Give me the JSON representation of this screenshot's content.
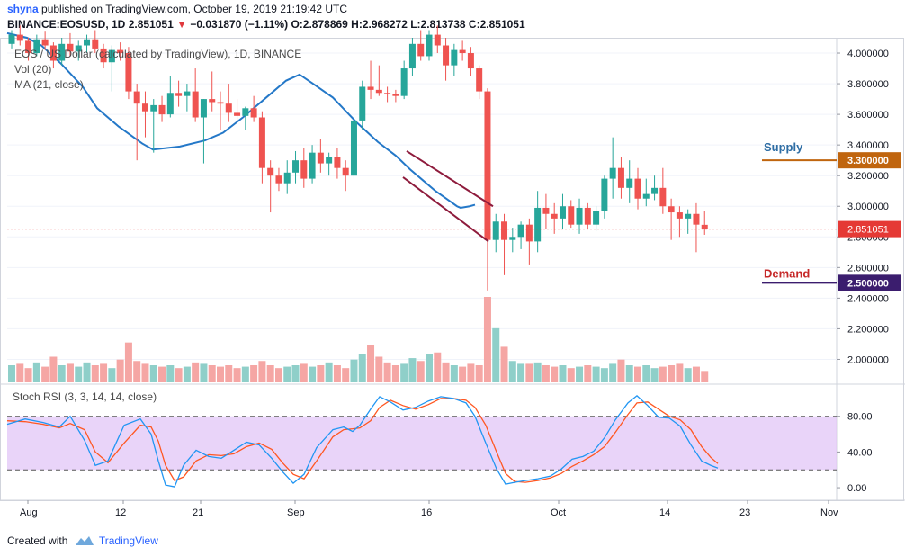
{
  "header": {
    "user": "shyna",
    "published": "published on TradingView.com, October 19, 2019 21:19:42 UTC",
    "symbol": "BINANCE:EOSUSD, 1D",
    "last": "2.851051",
    "change_arrow": "▼",
    "change": "−0.031870 (−1.11%)",
    "ohlc": "O:2.878869 H:2.968272 L:2.813738 C:2.851051"
  },
  "legend": {
    "title": "EOS / US Dollar (calculated by TradingView), 1D, BINANCE",
    "vol": "Vol (20)",
    "ma": "MA (21, close)",
    "stoch": "Stoch RSI (3, 3, 14, 14, close)"
  },
  "footer": {
    "created_with": "Created with",
    "brand": "TradingView"
  },
  "colors": {
    "up": "#26a69a",
    "down": "#ef5350",
    "ma": "#2478c8",
    "stoch_k": "#2196f3",
    "stoch_d": "#ff5722",
    "stoch_band": "#e1c6f7",
    "supply": "#c0650e",
    "demand": "#3b1d6e",
    "channel": "#8e1b3c",
    "price_line": "#e53935"
  },
  "chart_data": {
    "type": "candlestick",
    "x_labels": [
      "Aug",
      "12",
      "21",
      "Sep",
      "16",
      "Oct",
      "14",
      "23",
      "Nov"
    ],
    "price_axis": {
      "ylim": [
        1.85,
        4.1
      ],
      "ticks": [
        "4.000000",
        "3.800000",
        "3.600000",
        "3.400000",
        "3.200000",
        "3.000000",
        "2.800000",
        "2.600000",
        "2.400000",
        "2.200000",
        "2.000000"
      ],
      "tick_values": [
        4.0,
        3.8,
        3.6,
        3.4,
        3.2,
        3.0,
        2.8,
        2.6,
        2.4,
        2.2,
        2.0
      ]
    },
    "candles": [
      [
        4.06,
        4.15,
        4.03,
        4.12
      ],
      [
        4.12,
        4.18,
        4.05,
        4.08
      ],
      [
        4.08,
        4.1,
        3.95,
        4.0
      ],
      [
        4.0,
        4.12,
        3.98,
        4.09
      ],
      [
        4.09,
        4.14,
        4.02,
        4.05
      ],
      [
        4.05,
        4.07,
        3.9,
        3.95
      ],
      [
        3.95,
        4.1,
        3.92,
        4.06
      ],
      [
        4.06,
        4.13,
        3.98,
        4.01
      ],
      [
        4.01,
        4.08,
        3.95,
        4.05
      ],
      [
        4.05,
        4.12,
        4.0,
        4.09
      ],
      [
        4.09,
        4.15,
        4.0,
        4.03
      ],
      [
        4.03,
        4.06,
        3.9,
        3.94
      ],
      [
        3.94,
        4.05,
        3.75,
        4.02
      ],
      [
        4.02,
        4.07,
        3.95,
        4.0
      ],
      [
        4.0,
        4.04,
        3.7,
        3.75
      ],
      [
        3.75,
        3.8,
        3.3,
        3.67
      ],
      [
        3.67,
        3.75,
        3.45,
        3.62
      ],
      [
        3.62,
        3.7,
        3.35,
        3.66
      ],
      [
        3.66,
        3.72,
        3.55,
        3.6
      ],
      [
        3.6,
        3.85,
        3.58,
        3.74
      ],
      [
        3.74,
        3.82,
        3.65,
        3.72
      ],
      [
        3.72,
        3.8,
        3.62,
        3.75
      ],
      [
        3.75,
        3.9,
        3.55,
        3.58
      ],
      [
        3.58,
        3.7,
        3.28,
        3.7
      ],
      [
        3.7,
        3.88,
        3.62,
        3.68
      ],
      [
        3.68,
        3.75,
        3.5,
        3.67
      ],
      [
        3.67,
        3.8,
        3.55,
        3.61
      ],
      [
        3.61,
        3.7,
        3.55,
        3.59
      ],
      [
        3.59,
        3.65,
        3.5,
        3.64
      ],
      [
        3.64,
        3.72,
        3.55,
        3.58
      ],
      [
        3.58,
        3.62,
        3.15,
        3.25
      ],
      [
        3.25,
        3.3,
        2.96,
        3.2
      ],
      [
        3.2,
        3.25,
        3.1,
        3.15
      ],
      [
        3.15,
        3.3,
        3.08,
        3.22
      ],
      [
        3.22,
        3.36,
        3.15,
        3.3
      ],
      [
        3.3,
        3.38,
        3.12,
        3.18
      ],
      [
        3.18,
        3.4,
        3.15,
        3.35
      ],
      [
        3.35,
        3.44,
        3.22,
        3.28
      ],
      [
        3.28,
        3.35,
        3.2,
        3.32
      ],
      [
        3.32,
        3.38,
        3.18,
        3.25
      ],
      [
        3.25,
        3.3,
        3.1,
        3.2
      ],
      [
        3.2,
        3.58,
        3.18,
        3.56
      ],
      [
        3.56,
        3.82,
        3.5,
        3.78
      ],
      [
        3.78,
        3.95,
        3.7,
        3.76
      ],
      [
        3.76,
        3.92,
        3.72,
        3.74
      ],
      [
        3.74,
        3.78,
        3.68,
        3.73
      ],
      [
        3.73,
        3.76,
        3.68,
        3.72
      ],
      [
        3.72,
        3.95,
        3.7,
        3.9
      ],
      [
        3.9,
        4.1,
        3.85,
        4.06
      ],
      [
        4.06,
        4.15,
        3.95,
        3.98
      ],
      [
        3.98,
        4.15,
        3.95,
        4.12
      ],
      [
        4.12,
        4.18,
        4.0,
        4.05
      ],
      [
        4.05,
        4.1,
        3.82,
        3.92
      ],
      [
        3.92,
        4.06,
        3.85,
        4.02
      ],
      [
        4.02,
        4.08,
        3.95,
        4.0
      ],
      [
        4.0,
        4.04,
        3.85,
        3.9
      ],
      [
        3.9,
        3.92,
        3.7,
        3.75
      ],
      [
        3.75,
        3.77,
        2.45,
        2.78
      ],
      [
        2.78,
        2.95,
        2.7,
        2.9
      ],
      [
        2.9,
        2.95,
        2.55,
        2.78
      ],
      [
        2.78,
        2.86,
        2.7,
        2.8
      ],
      [
        2.8,
        2.9,
        2.72,
        2.88
      ],
      [
        2.88,
        2.92,
        2.62,
        2.77
      ],
      [
        2.77,
        3.1,
        2.7,
        2.99
      ],
      [
        2.99,
        3.08,
        2.85,
        2.95
      ],
      [
        2.95,
        3.02,
        2.82,
        2.92
      ],
      [
        2.92,
        3.08,
        2.85,
        3.0
      ],
      [
        3.0,
        3.04,
        2.86,
        2.88
      ],
      [
        2.88,
        3.05,
        2.82,
        2.99
      ],
      [
        2.99,
        3.02,
        2.85,
        2.88
      ],
      [
        2.88,
        3.0,
        2.84,
        2.97
      ],
      [
        2.97,
        3.2,
        2.92,
        3.18
      ],
      [
        3.18,
        3.45,
        3.05,
        3.25
      ],
      [
        3.25,
        3.32,
        3.05,
        3.12
      ],
      [
        3.12,
        3.3,
        3.02,
        3.18
      ],
      [
        3.18,
        3.25,
        2.98,
        3.05
      ],
      [
        3.05,
        3.18,
        3.0,
        3.08
      ],
      [
        3.08,
        3.2,
        3.04,
        3.12
      ],
      [
        3.12,
        3.25,
        2.95,
        3.0
      ],
      [
        3.0,
        3.05,
        2.78,
        2.96
      ],
      [
        2.96,
        3.0,
        2.8,
        2.92
      ],
      [
        2.92,
        2.98,
        2.82,
        2.95
      ],
      [
        2.95,
        3.02,
        2.7,
        2.88
      ],
      [
        2.878869,
        2.968272,
        2.813738,
        2.851051
      ]
    ],
    "volume": [
      12,
      13,
      10,
      14,
      11,
      18,
      12,
      13,
      11,
      14,
      12,
      13,
      10,
      16,
      28,
      15,
      13,
      12,
      11,
      12,
      10,
      11,
      14,
      13,
      12,
      11,
      12,
      10,
      11,
      12,
      15,
      12,
      10,
      11,
      12,
      13,
      11,
      12,
      14,
      12,
      10,
      16,
      20,
      26,
      18,
      14,
      12,
      13,
      17,
      15,
      20,
      21,
      14,
      12,
      11,
      13,
      12,
      60,
      38,
      25,
      15,
      13,
      13,
      14,
      12,
      11,
      12,
      10,
      11,
      12,
      11,
      10,
      13,
      16,
      12,
      11,
      12,
      10,
      11,
      12,
      13,
      10,
      11,
      8
    ],
    "ma21": [
      [
        0,
        4.13
      ],
      [
        22,
        4.1
      ],
      [
        38,
        4.05
      ],
      [
        60,
        3.93
      ],
      [
        84,
        3.78
      ],
      [
        100,
        3.64
      ],
      [
        124,
        3.52
      ],
      [
        150,
        3.41
      ],
      [
        162,
        3.37
      ],
      [
        192,
        3.39
      ],
      [
        220,
        3.43
      ],
      [
        240,
        3.48
      ],
      [
        262,
        3.58
      ],
      [
        290,
        3.72
      ],
      [
        310,
        3.82
      ],
      [
        325,
        3.86
      ],
      [
        340,
        3.8
      ],
      [
        362,
        3.71
      ],
      [
        388,
        3.55
      ],
      [
        412,
        3.42
      ],
      [
        432,
        3.33
      ],
      [
        448,
        3.24
      ],
      [
        462,
        3.17
      ],
      [
        476,
        3.1
      ],
      [
        488,
        3.05
      ],
      [
        500,
        3.0
      ],
      [
        504,
        2.99
      ],
      [
        514,
        3.0
      ],
      [
        520,
        3.01
      ]
    ],
    "supply": {
      "label": "Supply",
      "value": 3.3,
      "value_label": "3.300000"
    },
    "demand": {
      "label": "Demand",
      "value": 2.5,
      "value_label": "2.500000"
    },
    "last_price": {
      "value": 2.851051,
      "label": "2.851051"
    },
    "channel": {
      "upper": [
        [
          444,
          3.36
        ],
        [
          540,
          3.0
        ]
      ],
      "lower": [
        [
          440,
          3.19
        ],
        [
          535,
          2.77
        ]
      ]
    },
    "stoch_rsi": {
      "ticks": [
        "80.00",
        "40.00",
        "0.00"
      ],
      "tick_values": [
        80,
        40,
        0
      ],
      "ylim": [
        -8,
        115
      ],
      "band": [
        20,
        80
      ],
      "k": [
        [
          0,
          71
        ],
        [
          20,
          77
        ],
        [
          40,
          73
        ],
        [
          58,
          68
        ],
        [
          70,
          80
        ],
        [
          86,
          53
        ],
        [
          98,
          25
        ],
        [
          112,
          30
        ],
        [
          130,
          70
        ],
        [
          148,
          77
        ],
        [
          160,
          60
        ],
        [
          168,
          30
        ],
        [
          176,
          3
        ],
        [
          186,
          1
        ],
        [
          196,
          25
        ],
        [
          210,
          42
        ],
        [
          224,
          35
        ],
        [
          238,
          33
        ],
        [
          252,
          42
        ],
        [
          266,
          51
        ],
        [
          280,
          48
        ],
        [
          294,
          33
        ],
        [
          306,
          18
        ],
        [
          318,
          5
        ],
        [
          330,
          15
        ],
        [
          344,
          45
        ],
        [
          362,
          65
        ],
        [
          374,
          68
        ],
        [
          384,
          63
        ],
        [
          392,
          70
        ],
        [
          404,
          88
        ],
        [
          414,
          102
        ],
        [
          426,
          96
        ],
        [
          440,
          87
        ],
        [
          454,
          90
        ],
        [
          468,
          97
        ],
        [
          482,
          102
        ],
        [
          496,
          100
        ],
        [
          510,
          95
        ],
        [
          520,
          80
        ],
        [
          532,
          50
        ],
        [
          544,
          21
        ],
        [
          554,
          4
        ],
        [
          564,
          6
        ],
        [
          576,
          8
        ],
        [
          590,
          10
        ],
        [
          604,
          13
        ],
        [
          616,
          21
        ],
        [
          628,
          32
        ],
        [
          640,
          35
        ],
        [
          652,
          41
        ],
        [
          664,
          56
        ],
        [
          676,
          76
        ],
        [
          690,
          95
        ],
        [
          700,
          103
        ],
        [
          712,
          92
        ],
        [
          724,
          79
        ],
        [
          736,
          78
        ],
        [
          748,
          69
        ],
        [
          760,
          48
        ],
        [
          772,
          30
        ],
        [
          782,
          25
        ],
        [
          790,
          22
        ]
      ],
      "d": [
        [
          0,
          75
        ],
        [
          20,
          74
        ],
        [
          40,
          71
        ],
        [
          58,
          67
        ],
        [
          70,
          72
        ],
        [
          86,
          65
        ],
        [
          98,
          40
        ],
        [
          112,
          28
        ],
        [
          130,
          50
        ],
        [
          148,
          70
        ],
        [
          160,
          68
        ],
        [
          168,
          52
        ],
        [
          176,
          25
        ],
        [
          186,
          8
        ],
        [
          196,
          12
        ],
        [
          210,
          30
        ],
        [
          224,
          37
        ],
        [
          238,
          36
        ],
        [
          252,
          38
        ],
        [
          266,
          46
        ],
        [
          280,
          50
        ],
        [
          294,
          43
        ],
        [
          306,
          28
        ],
        [
          318,
          15
        ],
        [
          330,
          10
        ],
        [
          344,
          30
        ],
        [
          362,
          57
        ],
        [
          374,
          65
        ],
        [
          384,
          66
        ],
        [
          392,
          67
        ],
        [
          404,
          75
        ],
        [
          414,
          90
        ],
        [
          426,
          98
        ],
        [
          440,
          92
        ],
        [
          454,
          88
        ],
        [
          468,
          93
        ],
        [
          482,
          100
        ],
        [
          496,
          100
        ],
        [
          510,
          98
        ],
        [
          520,
          90
        ],
        [
          532,
          70
        ],
        [
          544,
          40
        ],
        [
          554,
          16
        ],
        [
          564,
          7
        ],
        [
          576,
          6
        ],
        [
          590,
          8
        ],
        [
          604,
          11
        ],
        [
          616,
          16
        ],
        [
          628,
          24
        ],
        [
          640,
          30
        ],
        [
          652,
          37
        ],
        [
          664,
          46
        ],
        [
          676,
          62
        ],
        [
          690,
          82
        ],
        [
          700,
          95
        ],
        [
          712,
          96
        ],
        [
          724,
          88
        ],
        [
          736,
          80
        ],
        [
          748,
          76
        ],
        [
          760,
          65
        ],
        [
          772,
          46
        ],
        [
          782,
          34
        ],
        [
          790,
          27
        ]
      ]
    }
  }
}
